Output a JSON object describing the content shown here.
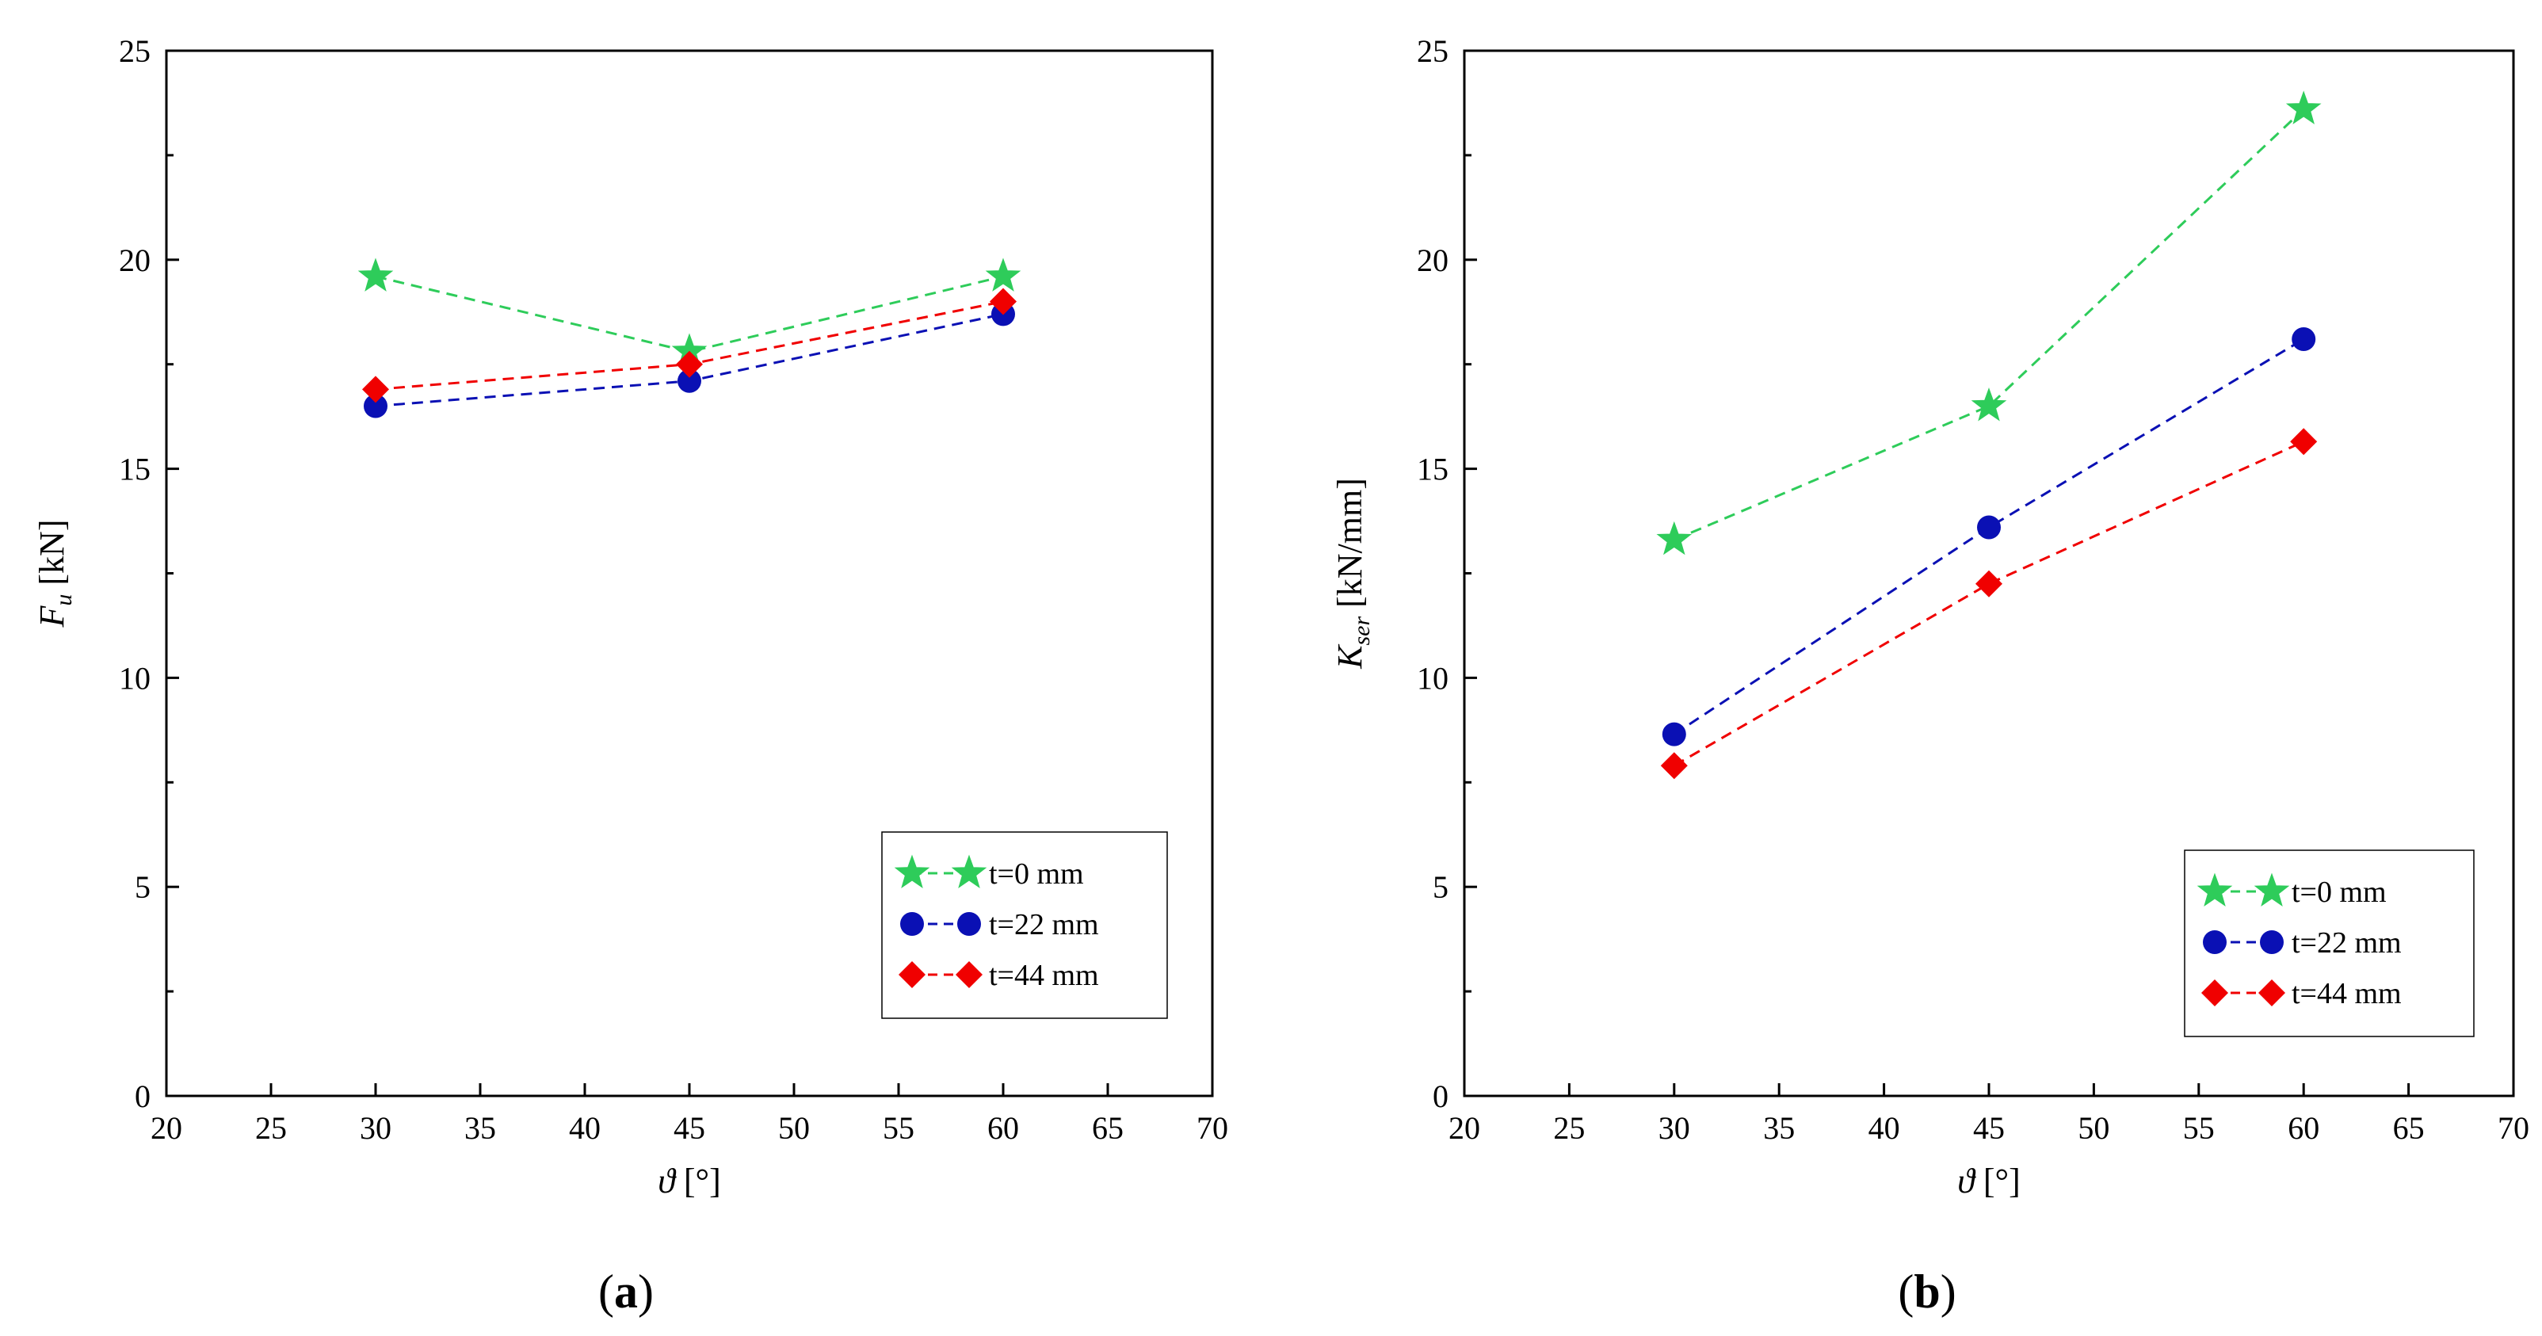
{
  "chart_data": [
    {
      "type": "line",
      "panel_label_open": "(",
      "panel_label_letter": "a",
      "panel_label_close": ")",
      "xlabel_symbol": "ϑ",
      "xlabel_unit": "[°]",
      "ylabel_symbol": "F",
      "ylabel_subscript": "u",
      "ylabel_unit": "[kN]",
      "xlim": [
        20,
        70
      ],
      "ylim": [
        0,
        25
      ],
      "xticks": [
        20,
        25,
        30,
        35,
        40,
        45,
        50,
        55,
        60,
        65,
        70
      ],
      "yticks": [
        0,
        5,
        10,
        15,
        20,
        25
      ],
      "yminor": [
        2.5,
        7.5,
        12.5,
        17.5,
        22.5
      ],
      "legend_position": "bottom-right",
      "x": [
        30,
        45,
        60
      ],
      "series": [
        {
          "name": "t=0 mm",
          "values": [
            19.6,
            17.8,
            19.6
          ],
          "color": "#2ecc5a",
          "marker": "star"
        },
        {
          "name": "t=22 mm",
          "values": [
            16.5,
            17.1,
            18.7
          ],
          "color": "#0a10b4",
          "marker": "circle"
        },
        {
          "name": "t=44 mm",
          "values": [
            16.9,
            17.5,
            19.0
          ],
          "color": "#f00000",
          "marker": "diamond"
        }
      ]
    },
    {
      "type": "line",
      "panel_label_open": "(",
      "panel_label_letter": "b",
      "panel_label_close": ")",
      "xlabel_symbol": "ϑ",
      "xlabel_unit": "[°]",
      "ylabel_symbol": "K",
      "ylabel_subscript": "ser",
      "ylabel_unit": "[kN/mm]",
      "xlim": [
        20,
        70
      ],
      "ylim": [
        0,
        25
      ],
      "xticks": [
        20,
        25,
        30,
        35,
        40,
        45,
        50,
        55,
        60,
        65,
        70
      ],
      "yticks": [
        0,
        5,
        10,
        15,
        20,
        25
      ],
      "yminor": [
        2.5,
        7.5,
        12.5,
        17.5,
        22.5
      ],
      "legend_position": "bottom-right",
      "x": [
        30,
        45,
        60
      ],
      "series": [
        {
          "name": "t=0 mm",
          "values": [
            13.3,
            16.5,
            23.6
          ],
          "color": "#2ecc5a",
          "marker": "star"
        },
        {
          "name": "t=22 mm",
          "values": [
            8.65,
            13.6,
            18.1
          ],
          "color": "#0a10b4",
          "marker": "circle"
        },
        {
          "name": "t=44 mm",
          "values": [
            7.9,
            12.25,
            15.65
          ],
          "color": "#f00000",
          "marker": "diamond"
        }
      ]
    }
  ]
}
